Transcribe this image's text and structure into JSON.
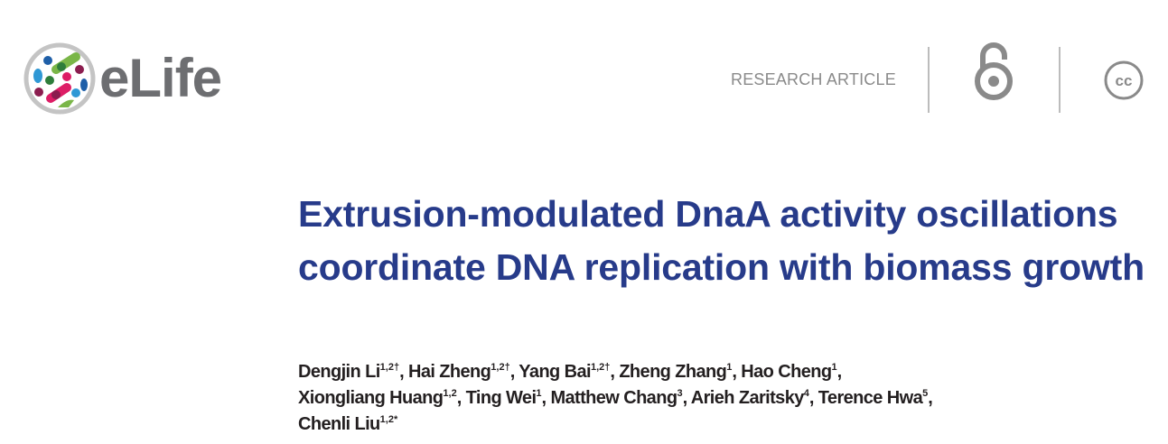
{
  "header": {
    "logo_text": "eLife",
    "article_type": "RESEARCH ARTICLE",
    "icons": [
      "open-access-icon",
      "creative-commons-icon"
    ],
    "cc_label": "cc"
  },
  "article": {
    "title": "Extrusion-modulated DnaA activity oscillations coordinate DNA replication with biomass growth",
    "authors": [
      {
        "name": "Dengjin Li",
        "sup": "1,2†"
      },
      {
        "name": "Hai Zheng",
        "sup": "1,2†"
      },
      {
        "name": "Yang Bai",
        "sup": "1,2†"
      },
      {
        "name": "Zheng Zhang",
        "sup": "1"
      },
      {
        "name": "Hao Cheng",
        "sup": "1"
      },
      {
        "name": "Xiongliang Huang",
        "sup": "1,2"
      },
      {
        "name": "Ting Wei",
        "sup": "1"
      },
      {
        "name": "Matthew Chang",
        "sup": "3"
      },
      {
        "name": "Arieh Zaritsky",
        "sup": "4"
      },
      {
        "name": "Terence Hwa",
        "sup": "5"
      },
      {
        "name": "Chenli Liu",
        "sup": "1,2*"
      }
    ]
  },
  "colors": {
    "title": "#273b8a",
    "logo_gray": "#6d6e71",
    "text": "#231f20"
  }
}
